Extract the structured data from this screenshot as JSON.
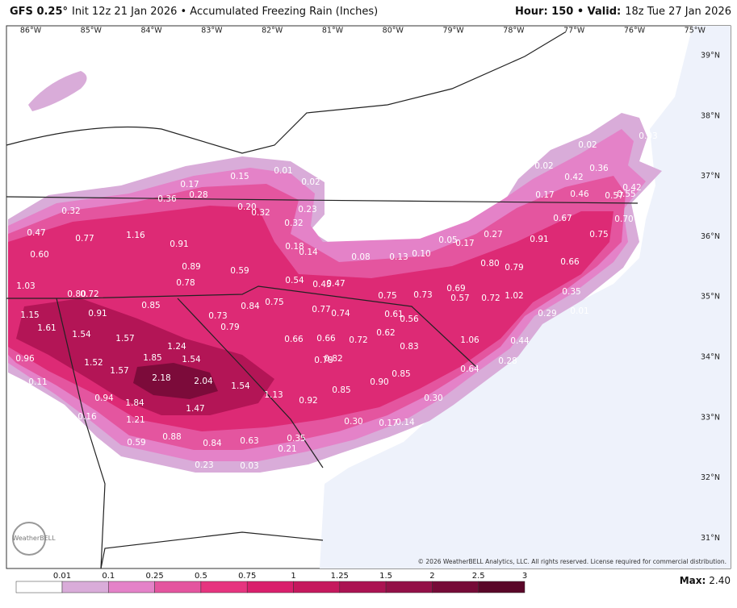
{
  "header": {
    "left_bold": "GFS 0.25°",
    "left_text": "Init 12z 21 Jan 2026 • Accumulated Freezing Rain (Inches)",
    "right_bold": "Hour: 150 • Valid:",
    "right_text": "18z Tue 27 Jan 2026"
  },
  "map": {
    "lon_labels": [
      "86°W",
      "85°W",
      "84°W",
      "83°W",
      "82°W",
      "81°W",
      "80°W",
      "79°W",
      "78°W",
      "77°W",
      "76°W",
      "75°W"
    ],
    "lat_labels": [
      "39°N",
      "38°N",
      "37°N",
      "36°N",
      "35°N",
      "34°N",
      "33°N",
      "32°N",
      "31°N"
    ],
    "point_values": [
      "0.17",
      "0.15",
      "0.01",
      "0.02",
      "0.36",
      "0.28",
      "0.20",
      "0.32",
      "0.23",
      "0.32",
      "0.32",
      "0.47",
      "0.77",
      "1.16",
      "0.91",
      "0.18",
      "0.14",
      "0.08",
      "0.13",
      "0.10",
      "0.05",
      "0.17",
      "0.27",
      "0.91",
      "0.75",
      "0.67",
      "0.70",
      "0.60",
      "0.89",
      "0.59",
      "0.78",
      "0.54",
      "0.45",
      "0.47",
      "0.80",
      "0.79",
      "0.66",
      "1.03",
      "0.80",
      "0.72",
      "0.75",
      "0.73",
      "0.69",
      "0.57",
      "0.72",
      "1.02",
      "0.35",
      "0.85",
      "0.84",
      "0.75",
      "0.77",
      "0.74",
      "0.61",
      "0.56",
      "1.15",
      "0.91",
      "0.73",
      "0.79",
      "0.29",
      "0.01",
      "1.61",
      "1.54",
      "1.57",
      "0.66",
      "0.66",
      "0.72",
      "0.62",
      "1.06",
      "0.44",
      "0.83",
      "1.24",
      "0.96",
      "1.52",
      "1.85",
      "1.54",
      "0.78",
      "0.82",
      "0.28",
      "1.57",
      "0.64",
      "0.85",
      "0.11",
      "2.18",
      "2.04",
      "1.54",
      "0.90",
      "0.85",
      "0.94",
      "1.84",
      "1.13",
      "0.92",
      "0.30",
      "1.47",
      "0.16",
      "1.21",
      "0.30",
      "0.17",
      "0.14",
      "0.59",
      "0.88",
      "0.84",
      "0.63",
      "0.35",
      "0.21",
      "0.23",
      "0.03",
      "0.02",
      "0.02",
      "0.03",
      "0.36",
      "0.42",
      "0.42",
      "0.17",
      "0.46",
      "0.57",
      "0.55"
    ],
    "logo": "WeatherBELL",
    "copyright": "© 2026 WeatherBELL Analytics, LLC. All rights reserved. License required for commercial distribution."
  },
  "legend": {
    "labels": [
      "0.01",
      "0.1",
      "0.25",
      "0.5",
      "0.75",
      "1",
      "1.25",
      "1.5",
      "2",
      "2.5",
      "3"
    ],
    "colors": [
      "#ffffff",
      "#d9acd9",
      "#e482c8",
      "#e4559f",
      "#e6347f",
      "#d91f6c",
      "#c5185d",
      "#ab1352",
      "#931047",
      "#760a37",
      "#5a0628"
    ]
  },
  "footer": {
    "max_label": "Max:",
    "max_value": "2.40"
  }
}
